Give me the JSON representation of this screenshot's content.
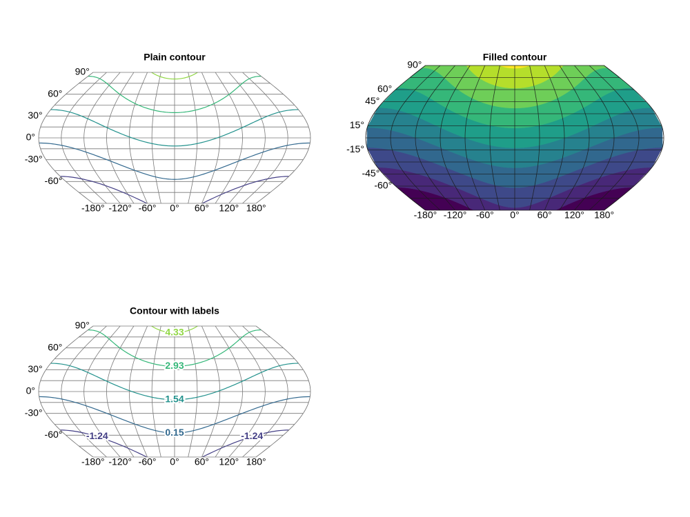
{
  "chart_data": [
    {
      "type": "contour",
      "title": "Plain contour",
      "levels": [
        -1.24,
        0.15,
        1.54,
        2.93,
        4.33
      ],
      "colors": [
        "#433e85",
        "#31688e",
        "#21918c",
        "#35b779",
        "#90d743"
      ],
      "xlim": [
        -180,
        180
      ],
      "ylim": [
        -90,
        90
      ],
      "xticks": [
        {
          "value": -180,
          "label": "-180°"
        },
        {
          "value": -120,
          "label": "-120°"
        },
        {
          "value": -60,
          "label": "-60°"
        },
        {
          "value": 0,
          "label": "0°"
        },
        {
          "value": 60,
          "label": "60°"
        },
        {
          "value": 120,
          "label": "120°"
        },
        {
          "value": 180,
          "label": "180°"
        }
      ],
      "yticks": [
        {
          "value": 90,
          "label": "90°"
        },
        {
          "value": 60,
          "label": "60°"
        },
        {
          "value": 30,
          "label": "30°"
        },
        {
          "value": 0,
          "label": "0°"
        },
        {
          "value": -30,
          "label": "-30°"
        },
        {
          "value": -60,
          "label": "-60°"
        }
      ],
      "grid": true,
      "show_labels": false
    },
    {
      "type": "filled_contour",
      "title": "Filled contour",
      "levels": [
        -1.5,
        -0.75,
        0,
        0.75,
        1.5,
        2.25,
        3,
        3.75,
        4.5
      ],
      "colors": [
        "#440154",
        "#482878",
        "#3e4989",
        "#31688e",
        "#26828e",
        "#1f9e89",
        "#35b779",
        "#6ece58",
        "#b5de2b",
        "#fde725"
      ],
      "xlim": [
        -180,
        180
      ],
      "ylim": [
        -90,
        90
      ],
      "xticks": [
        {
          "value": -180,
          "label": "-180°"
        },
        {
          "value": -120,
          "label": "-120°"
        },
        {
          "value": -60,
          "label": "-60°"
        },
        {
          "value": 0,
          "label": "0°"
        },
        {
          "value": 60,
          "label": "60°"
        },
        {
          "value": 120,
          "label": "120°"
        },
        {
          "value": 180,
          "label": "180°"
        }
      ],
      "yticks": [
        {
          "value": 90,
          "label": "90°"
        },
        {
          "value": 60,
          "label": "60°"
        },
        {
          "value": 45,
          "label": "45°"
        },
        {
          "value": 15,
          "label": "15°"
        },
        {
          "value": -15,
          "label": "-15°"
        },
        {
          "value": -45,
          "label": "-45°"
        },
        {
          "value": -60,
          "label": "-60°"
        }
      ],
      "grid": true
    },
    {
      "type": "contour",
      "title": "Contour with labels",
      "levels": [
        -1.24,
        0.15,
        1.54,
        2.93,
        4.33
      ],
      "colors": [
        "#433e85",
        "#31688e",
        "#21918c",
        "#35b779",
        "#90d743"
      ],
      "xlim": [
        -180,
        180
      ],
      "ylim": [
        -90,
        90
      ],
      "xticks": [
        {
          "value": -180,
          "label": "-180°"
        },
        {
          "value": -120,
          "label": "-120°"
        },
        {
          "value": -60,
          "label": "-60°"
        },
        {
          "value": 0,
          "label": "0°"
        },
        {
          "value": 60,
          "label": "60°"
        },
        {
          "value": 120,
          "label": "120°"
        },
        {
          "value": 180,
          "label": "180°"
        }
      ],
      "yticks": [
        {
          "value": 90,
          "label": "90°"
        },
        {
          "value": 60,
          "label": "60°"
        },
        {
          "value": 30,
          "label": "30°"
        },
        {
          "value": 0,
          "label": "0°"
        },
        {
          "value": -30,
          "label": "-30°"
        },
        {
          "value": -60,
          "label": "-60°"
        }
      ],
      "grid": true,
      "show_labels": true
    }
  ]
}
